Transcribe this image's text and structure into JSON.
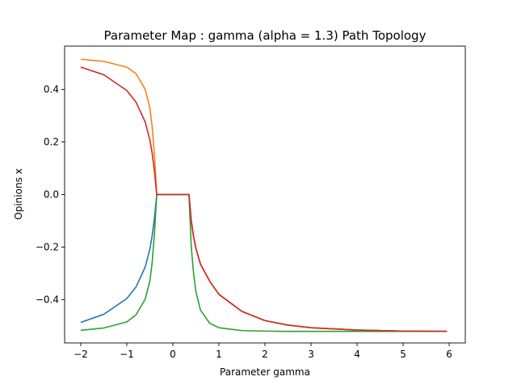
{
  "chart_data": {
    "type": "line",
    "title": "Parameter Map : gamma (alpha = 1.3) Path Topology",
    "xlabel": "Parameter gamma",
    "ylabel": "Opinions x",
    "xlim": [
      -2.35,
      6.35
    ],
    "ylim": [
      -0.565,
      0.565
    ],
    "xticks": [
      -2,
      -1,
      0,
      1,
      2,
      3,
      4,
      5,
      6
    ],
    "yticks": [
      -0.4,
      -0.2,
      0.0,
      0.2,
      0.4
    ],
    "xtick_labels": [
      "−2",
      "−1",
      "0",
      "1",
      "2",
      "3",
      "4",
      "5",
      "6"
    ],
    "ytick_labels": [
      "−0.4",
      "−0.2",
      "0.0",
      "0.2",
      "0.4"
    ],
    "grid": false,
    "legend": "none",
    "series": [
      {
        "color": "#1f77b4",
        "x": [
          -2.0,
          -1.5,
          -1.0,
          -0.8,
          -0.6,
          -0.5,
          -0.45,
          -0.4,
          -0.35,
          -0.3,
          0.0,
          0.35,
          0.4,
          0.45,
          0.5,
          0.6,
          0.8,
          1.0,
          1.5,
          2.0,
          2.5,
          3.0,
          4.0,
          5.0,
          5.95
        ],
        "y": [
          -0.487,
          -0.456,
          -0.396,
          -0.352,
          -0.276,
          -0.208,
          -0.158,
          -0.09,
          0.0,
          0.0,
          0.0,
          0.0,
          -0.1,
          -0.16,
          -0.205,
          -0.265,
          -0.33,
          -0.38,
          -0.445,
          -0.48,
          -0.497,
          -0.507,
          -0.516,
          -0.52,
          -0.521
        ]
      },
      {
        "color": "#ff7f0e",
        "x": [
          -2.0,
          -1.5,
          -1.0,
          -0.8,
          -0.6,
          -0.5,
          -0.45,
          -0.4,
          -0.35,
          -0.3,
          0.0,
          0.35,
          0.4,
          0.45,
          0.5,
          0.6,
          0.8,
          1.0,
          1.5,
          2.0,
          2.5,
          3.0,
          4.0,
          5.0,
          5.95
        ],
        "y": [
          0.515,
          0.507,
          0.485,
          0.46,
          0.4,
          0.33,
          0.26,
          0.15,
          0.0,
          0.0,
          0.0,
          0.0,
          -0.1,
          -0.16,
          -0.205,
          -0.265,
          -0.33,
          -0.38,
          -0.445,
          -0.48,
          -0.497,
          -0.507,
          -0.516,
          -0.52,
          -0.521
        ]
      },
      {
        "color": "#2ca02c",
        "x": [
          -2.0,
          -1.5,
          -1.0,
          -0.8,
          -0.6,
          -0.5,
          -0.45,
          -0.4,
          -0.35,
          -0.3,
          0.0,
          0.35,
          0.38,
          0.4,
          0.45,
          0.5,
          0.6,
          0.8,
          1.0,
          1.5,
          2.0,
          2.5,
          3.0,
          4.0,
          5.0,
          5.95
        ],
        "y": [
          -0.517,
          -0.508,
          -0.485,
          -0.458,
          -0.398,
          -0.33,
          -0.26,
          -0.15,
          0.0,
          0.0,
          0.0,
          0.0,
          -0.12,
          -0.2,
          -0.3,
          -0.37,
          -0.44,
          -0.49,
          -0.507,
          -0.518,
          -0.52,
          -0.521,
          -0.521,
          -0.521,
          -0.521,
          -0.521
        ]
      },
      {
        "color": "#d62728",
        "x": [
          -2.0,
          -1.5,
          -1.0,
          -0.8,
          -0.6,
          -0.5,
          -0.45,
          -0.4,
          -0.35,
          -0.3,
          0.0,
          0.35,
          0.4,
          0.45,
          0.5,
          0.6,
          0.8,
          1.0,
          1.5,
          2.0,
          2.5,
          3.0,
          4.0,
          5.0,
          5.95
        ],
        "y": [
          0.485,
          0.456,
          0.396,
          0.352,
          0.276,
          0.208,
          0.158,
          0.09,
          0.0,
          0.0,
          0.0,
          0.0,
          -0.1,
          -0.16,
          -0.205,
          -0.265,
          -0.33,
          -0.38,
          -0.445,
          -0.48,
          -0.497,
          -0.507,
          -0.516,
          -0.52,
          -0.521
        ]
      }
    ]
  }
}
